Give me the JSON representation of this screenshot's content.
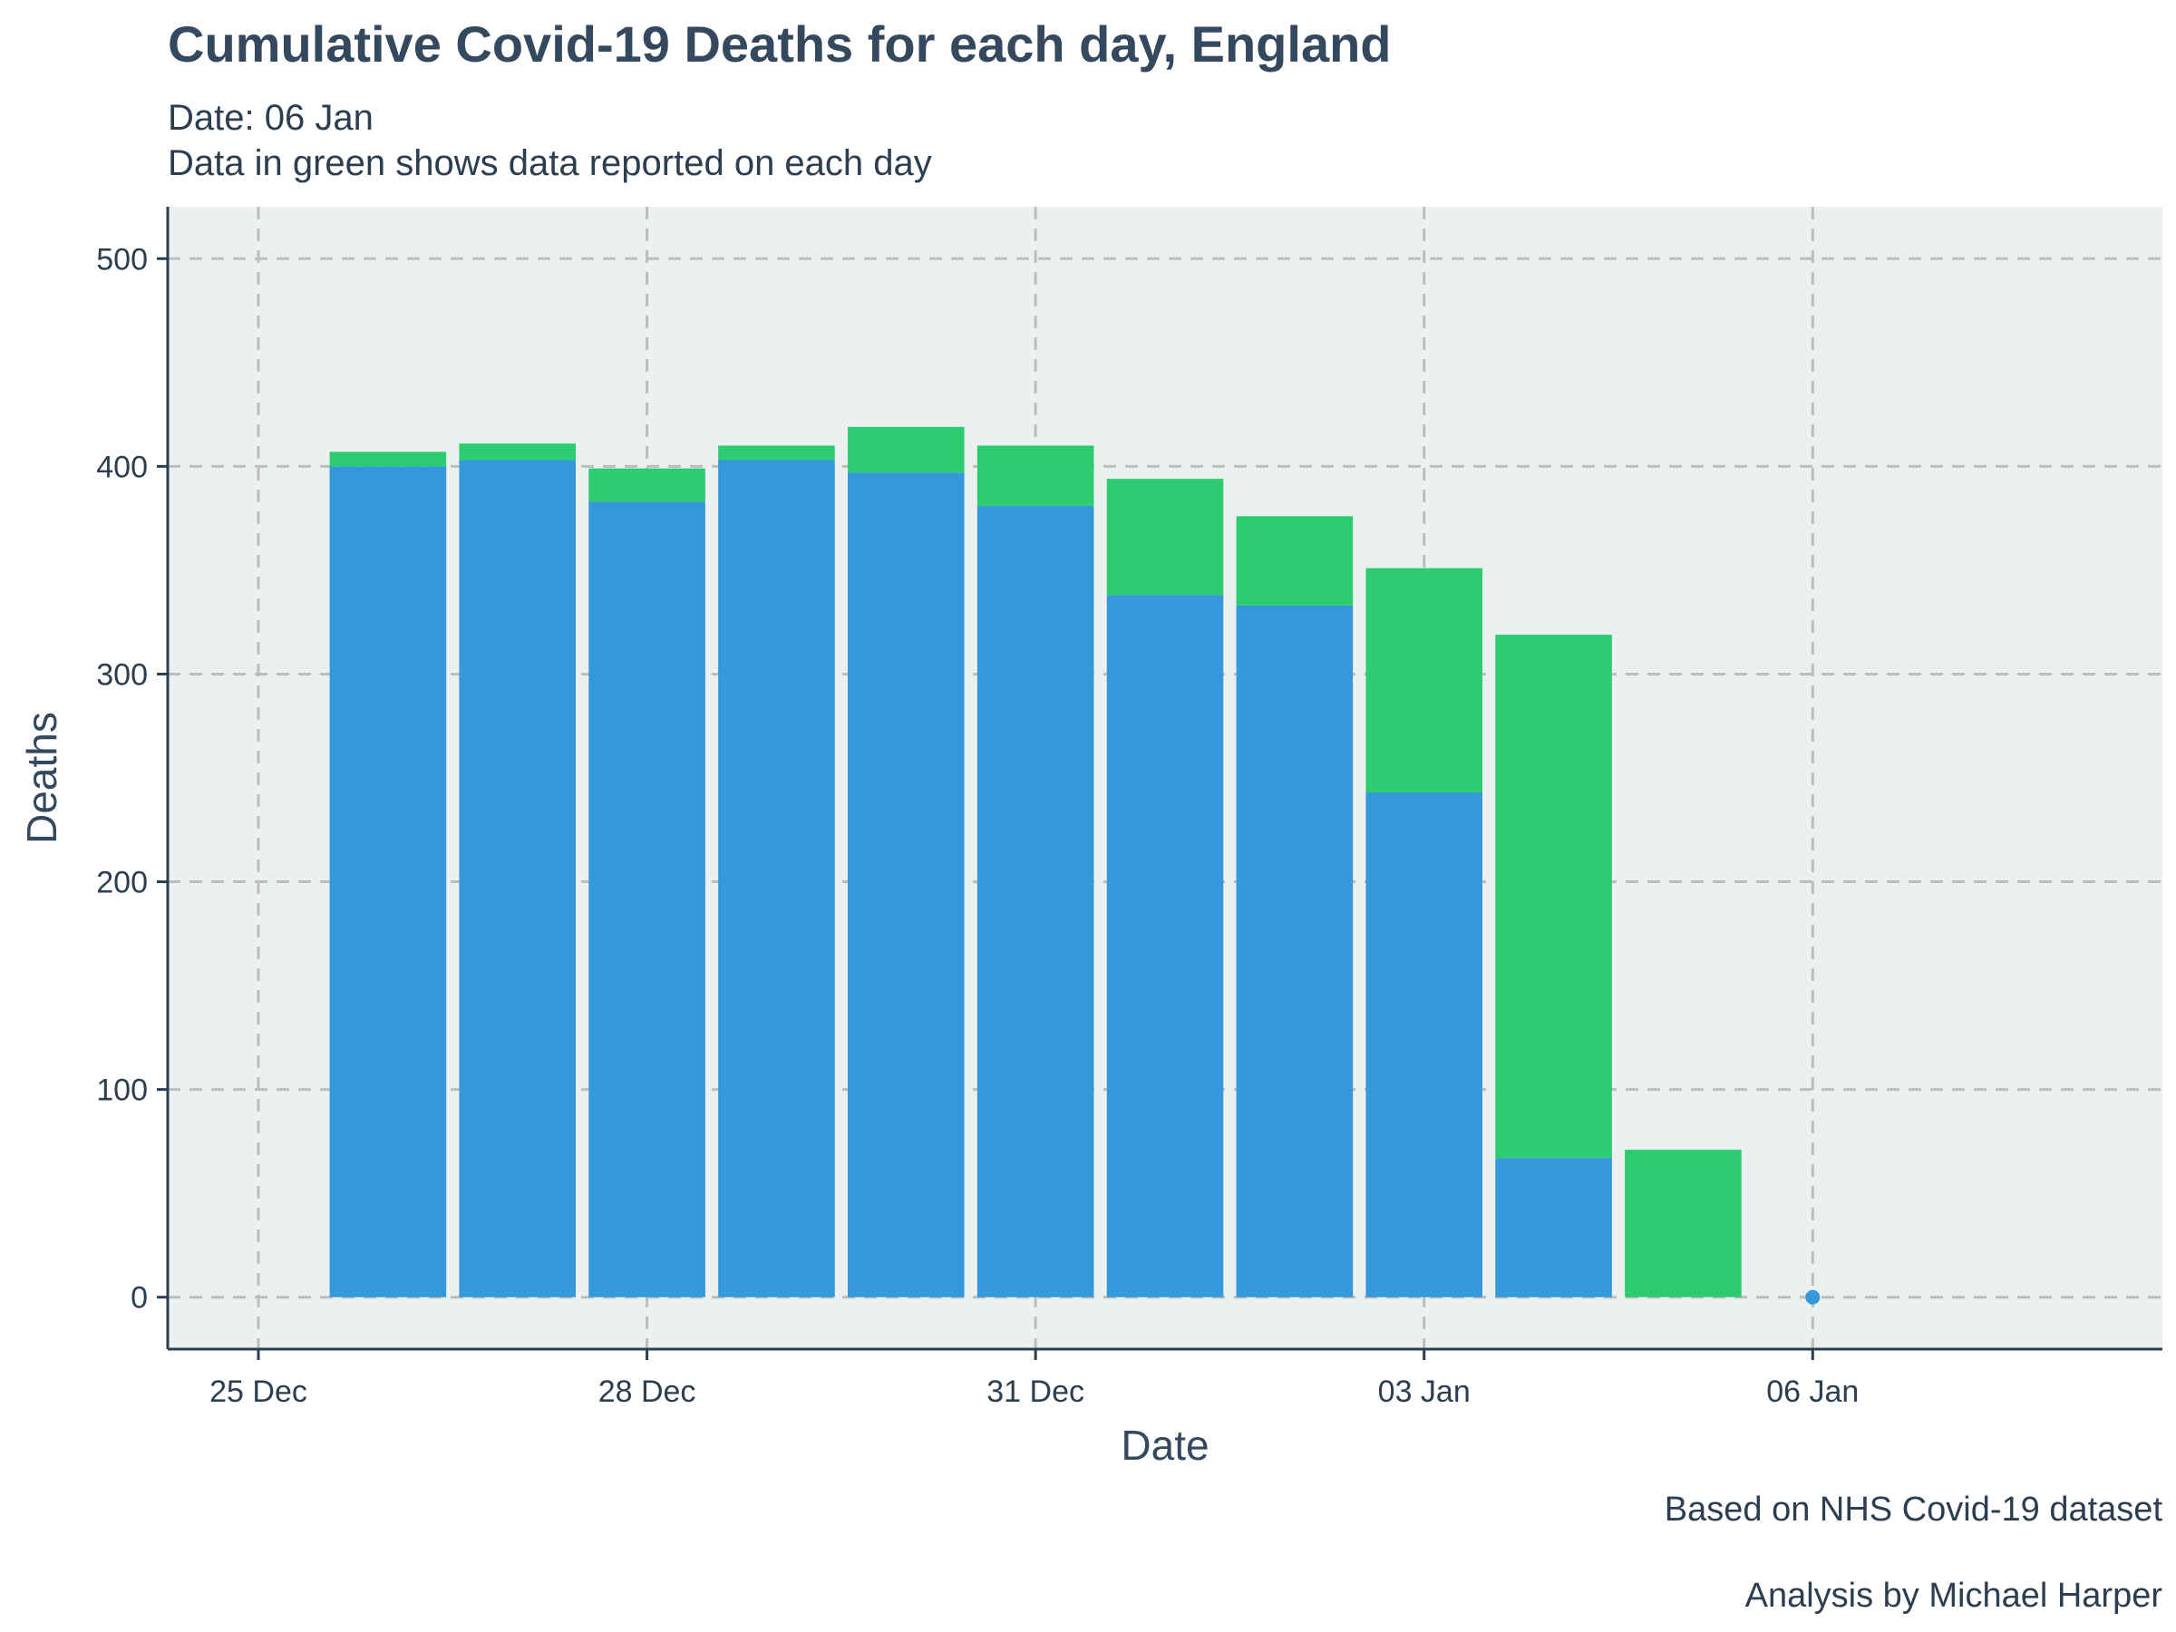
{
  "chart_data": {
    "type": "bar",
    "stacked": true,
    "title": "Cumulative Covid-19 Deaths for each day, England",
    "subtitle_lines": [
      "Date: 06 Jan",
      "Data in green shows data reported on each day"
    ],
    "xlabel": "Date",
    "ylabel": "Deaths",
    "ylim": [
      -25,
      525
    ],
    "yticks": [
      0,
      100,
      200,
      300,
      400,
      500
    ],
    "x_day_range": [
      24.3,
      39.7
    ],
    "xticks": [
      {
        "label": "25 Dec",
        "day": 25
      },
      {
        "label": "28 Dec",
        "day": 28
      },
      {
        "label": "31 Dec",
        "day": 31
      },
      {
        "label": "03 Jan",
        "day": 34
      },
      {
        "label": "06 Jan",
        "day": 37
      }
    ],
    "categories": [
      "26 Dec",
      "27 Dec",
      "28 Dec",
      "29 Dec",
      "30 Dec",
      "31 Dec",
      "01 Jan",
      "02 Jan",
      "03 Jan",
      "04 Jan",
      "05 Jan"
    ],
    "category_days": [
      26,
      27,
      28,
      29,
      30,
      31,
      32,
      33,
      34,
      35,
      36
    ],
    "series": [
      {
        "values": [
          400,
          403,
          383,
          403,
          397,
          381,
          338,
          333,
          243,
          67,
          0
        ]
      },
      {
        "values": [
          7,
          8,
          16,
          7,
          22,
          29,
          56,
          43,
          108,
          252,
          71
        ]
      }
    ],
    "point": {
      "day": 37,
      "value": 0
    },
    "colors": {
      "previous": "#3498db",
      "reported": "#2ecc71",
      "panel": "#ecf0f1",
      "axis": "#2c3e50",
      "grid": "#bdbdbd"
    },
    "grid": true,
    "legend": "none"
  },
  "captions": [
    "Based on NHS Covid-19 dataset",
    "Analysis by Michael Harper"
  ]
}
